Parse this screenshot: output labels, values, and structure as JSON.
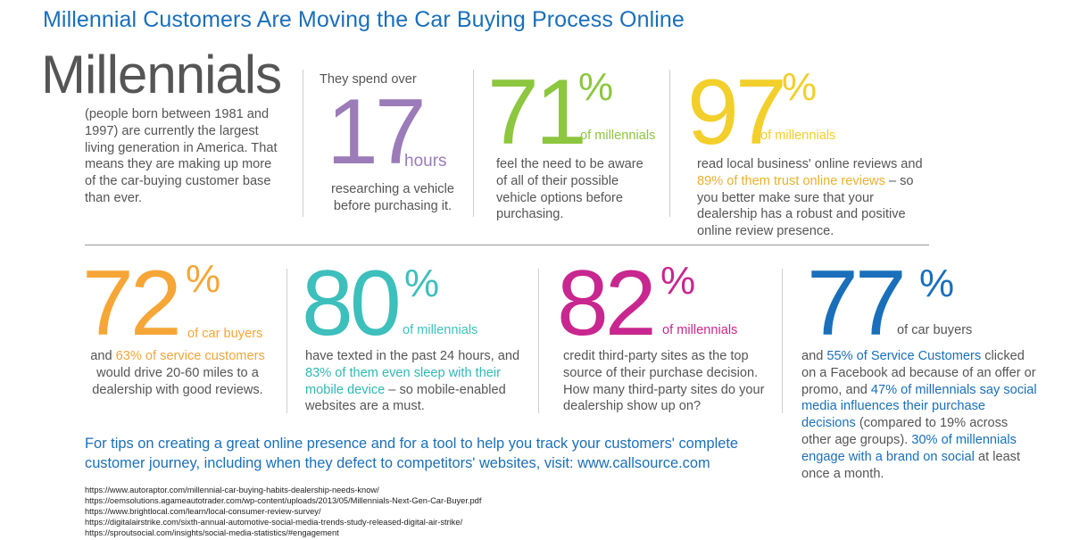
{
  "title": "Millennial Customers Are Moving the Car Buying Process Online",
  "intro": {
    "word": "Millennials",
    "text": "(people born between 1981 and 1997) are currently the largest living generation in America. That means they are making up more of the car-buying customer base than ever."
  },
  "stats_row1": [
    {
      "lead": "They spend over",
      "number": "17",
      "unit": "hours",
      "text": "researching a vehicle before purchasing it.",
      "color": "#9b7bb8"
    },
    {
      "number": "71",
      "symbol": "%",
      "qualifier": "of millennials",
      "text": "feel the need to be aware of all of their possible vehicle options before purchasing.",
      "color": "#8dc63f"
    },
    {
      "number": "97",
      "symbol": "%",
      "qualifier": "of millennials",
      "text_before": "read local business' online reviews and",
      "highlight": "89% of them trust online reviews",
      "text_after": "– so you better make sure that your dealership has a robust and positive online review presence.",
      "color": "#f2cf2a"
    }
  ],
  "stats_row2": [
    {
      "number": "72",
      "symbol": "%",
      "qualifier": "of car buyers",
      "text_before": "and",
      "highlight": "63% of service customers",
      "text_after": "would drive 20-60 miles to a dealership with good reviews.",
      "color": "#f5a637"
    },
    {
      "number": "80",
      "symbol": "%",
      "qualifier": "of millennials",
      "text_before": "have texted in the past 24 hours, and",
      "highlight": "83% of them even sleep with their mobile device",
      "text_after": "– so mobile-enabled websites are a must.",
      "color": "#3dbfbc"
    },
    {
      "number": "82",
      "symbol": "%",
      "qualifier": "of millennials",
      "text": "credit third-party sites as the top source of their purchase decision. How many  third-party sites do your dealership show up on?",
      "color": "#c8278f"
    },
    {
      "number": "77",
      "symbol": "%",
      "qualifier": "of car buyers",
      "text_a": "and",
      "hl_a": "55% of Service Customers",
      "text_b": "clicked on a Facebook ad because of an offer or promo, and",
      "hl_b": "47% of millennials say social media influences their purchase decisions",
      "text_c": "(compared to 19% across other age groups).",
      "hl_c": "30% of millennials engage with a brand on social",
      "text_d": "at least once a month.",
      "color": "#1a6fba"
    }
  ],
  "footer_tip": "For tips on creating a great online presence and for a tool to help you track your customers' complete customer journey, including when they defect to competitors' websites, visit: www.callsource.com",
  "references": [
    "https://www.autoraptor.com/millennial-car-buying-habits-dealership-needs-know/",
    "https://oemsolutions.agameautotrader.com/wp-content/uploads/2013/05/Millennials-Next-Gen-Car-Buyer.pdf",
    "https://www.brightlocal.com/learn/local-consumer-review-survey/",
    "https://digitalairstrike.com/sixth-annual-automotive-social-media-trends-study-released-digital-air-strike/",
    "https://sproutsocial.com/insights/social-media-statistics/#engagement"
  ]
}
